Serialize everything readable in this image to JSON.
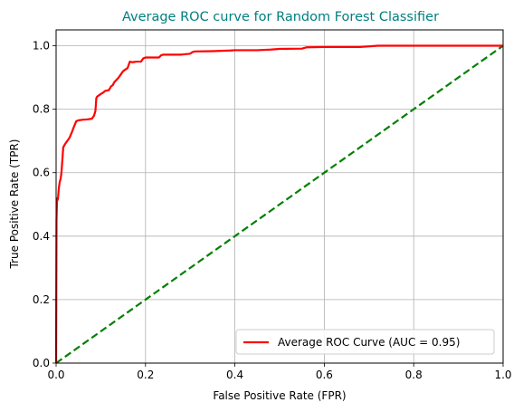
{
  "chart_data": {
    "type": "line",
    "title": "Average ROC curve for Random Forest Classifier",
    "title_color": "#008080",
    "xlabel": "False Positive Rate (FPR)",
    "ylabel": "True Positive Rate (TPR)",
    "xlim": [
      0.0,
      1.0
    ],
    "ylim": [
      0.0,
      1.05
    ],
    "x_ticks": [
      0.0,
      0.2,
      0.4,
      0.6,
      0.8,
      1.0
    ],
    "x_tick_labels": [
      "0.0",
      "0.2",
      "0.4",
      "0.6",
      "0.8",
      "1.0"
    ],
    "y_ticks": [
      0.0,
      0.2,
      0.4,
      0.6,
      0.8,
      1.0
    ],
    "y_tick_labels": [
      "0.0",
      "0.2",
      "0.4",
      "0.6",
      "0.8",
      "1.0"
    ],
    "grid": true,
    "legend_position": "lower-right",
    "series": [
      {
        "name": "Average ROC Curve (AUC = 0.95)",
        "color": "#ff0000",
        "style": "solid",
        "x": [
          0.0,
          0.001,
          0.002,
          0.003,
          0.004,
          0.006,
          0.008,
          0.01,
          0.012,
          0.013,
          0.016,
          0.02,
          0.025,
          0.03,
          0.036,
          0.04,
          0.045,
          0.05,
          0.06,
          0.07,
          0.08,
          0.085,
          0.088,
          0.09,
          0.092,
          0.1,
          0.105,
          0.11,
          0.118,
          0.123,
          0.127,
          0.13,
          0.14,
          0.145,
          0.15,
          0.155,
          0.16,
          0.165,
          0.17,
          0.18,
          0.19,
          0.195,
          0.2,
          0.22,
          0.23,
          0.235,
          0.24,
          0.25,
          0.28,
          0.3,
          0.305,
          0.31,
          0.35,
          0.39,
          0.4,
          0.45,
          0.48,
          0.5,
          0.55,
          0.56,
          0.6,
          0.65,
          0.68,
          0.72,
          0.8,
          1.0
        ],
        "y": [
          0.0,
          0.45,
          0.51,
          0.52,
          0.515,
          0.55,
          0.57,
          0.58,
          0.6,
          0.62,
          0.68,
          0.69,
          0.7,
          0.71,
          0.73,
          0.745,
          0.762,
          0.765,
          0.767,
          0.768,
          0.77,
          0.78,
          0.795,
          0.835,
          0.84,
          0.848,
          0.852,
          0.858,
          0.86,
          0.872,
          0.876,
          0.885,
          0.9,
          0.91,
          0.92,
          0.925,
          0.93,
          0.95,
          0.948,
          0.95,
          0.95,
          0.96,
          0.963,
          0.963,
          0.963,
          0.97,
          0.972,
          0.972,
          0.972,
          0.975,
          0.98,
          0.982,
          0.983,
          0.985,
          0.986,
          0.986,
          0.988,
          0.99,
          0.991,
          0.995,
          0.996,
          0.996,
          0.996,
          1.0,
          1.0,
          1.0
        ]
      },
      {
        "name": "",
        "color": "#008000",
        "style": "dashed",
        "x": [
          0.0,
          1.0
        ],
        "y": [
          0.0,
          1.0
        ]
      }
    ]
  }
}
